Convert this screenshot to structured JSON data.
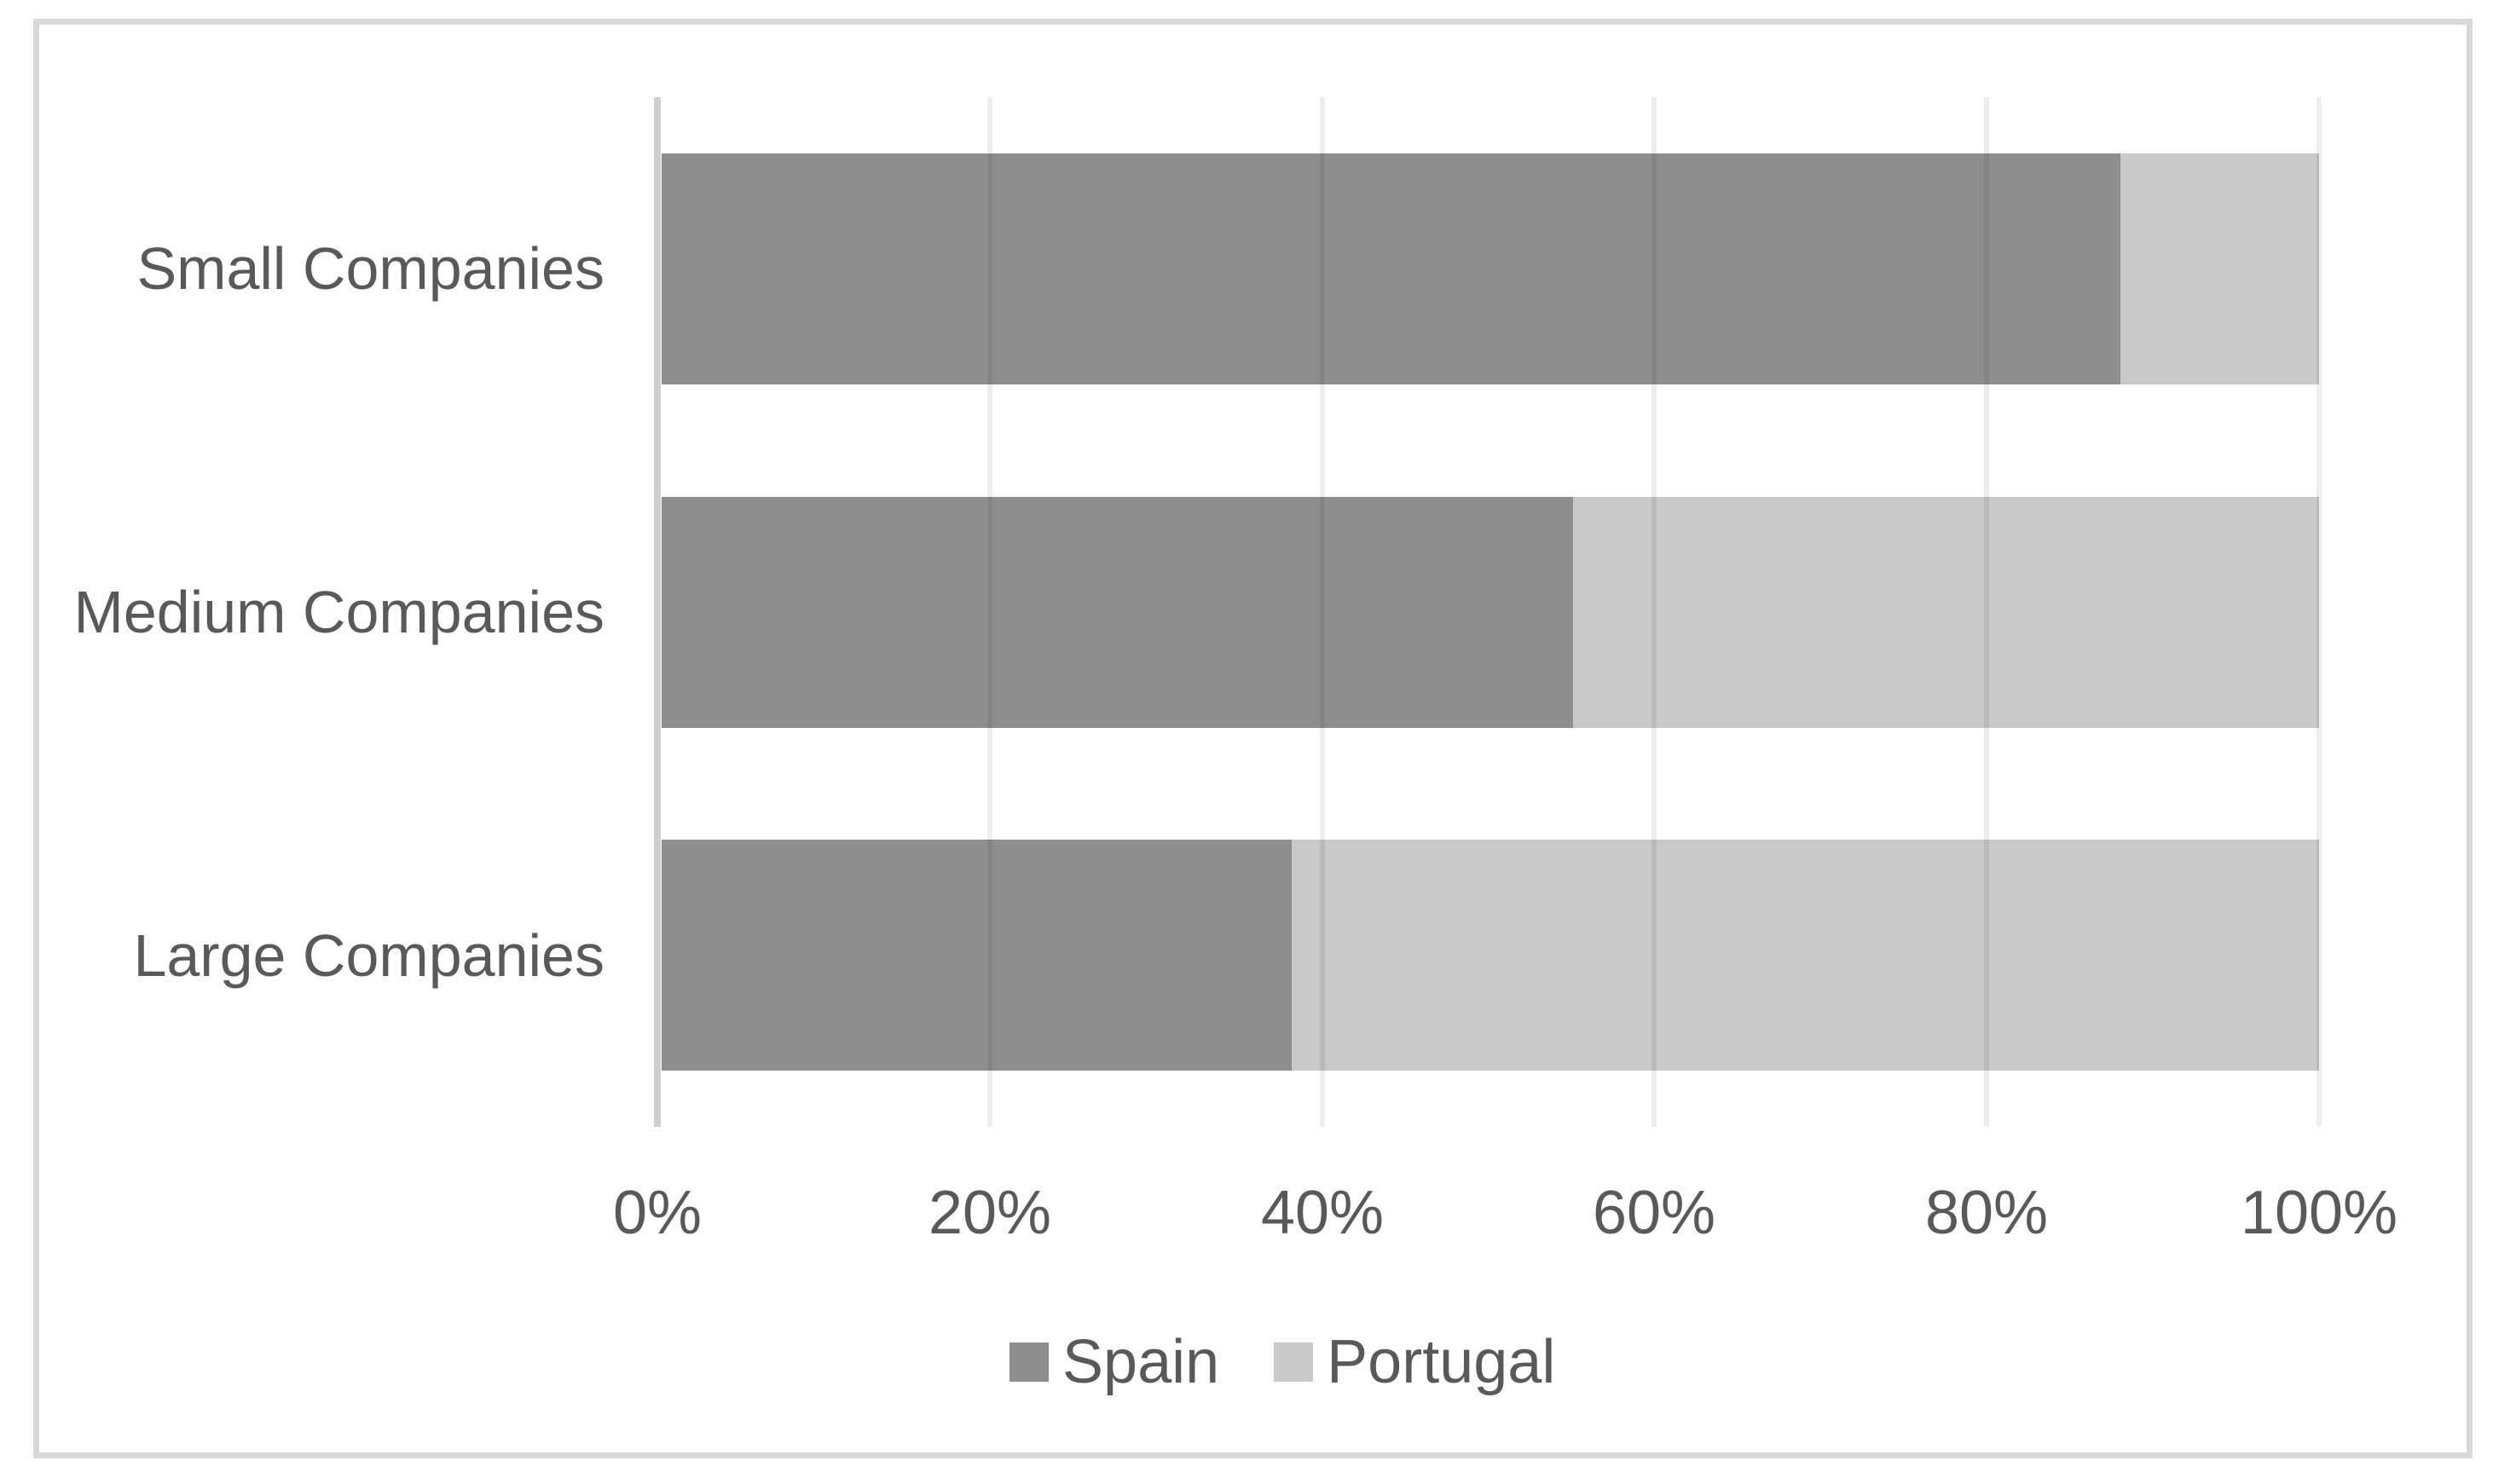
{
  "chart_data": {
    "type": "bar",
    "orientation": "horizontal",
    "stacked": true,
    "percent_stacked": true,
    "title": "",
    "categories": [
      "Small Companies",
      "Medium Companies",
      "Large Companies"
    ],
    "series": [
      {
        "name": "Spain",
        "color": "#8e8e8e",
        "values": [
          88,
          55,
          38
        ]
      },
      {
        "name": "Portugal",
        "color": "#c9c9c9",
        "values": [
          12,
          45,
          62
        ]
      }
    ],
    "x_axis": {
      "min": 0,
      "max": 100,
      "tick_step": 20,
      "tick_labels": [
        "0%",
        "20%",
        "40%",
        "60%",
        "80%",
        "100%"
      ]
    },
    "legend": {
      "position": "bottom",
      "entries": [
        "Spain",
        "Portugal"
      ]
    },
    "grid": "vertical-major-only"
  },
  "colors": {
    "spain_series": "#8e8e8e",
    "portugal_series": "#c9c9c9",
    "axis_line": "#cfcfcf",
    "gridline": "rgba(0,0,0,0.07)",
    "chart_border": "#d9d9d9",
    "text": "#595959",
    "background": "#ffffff"
  }
}
